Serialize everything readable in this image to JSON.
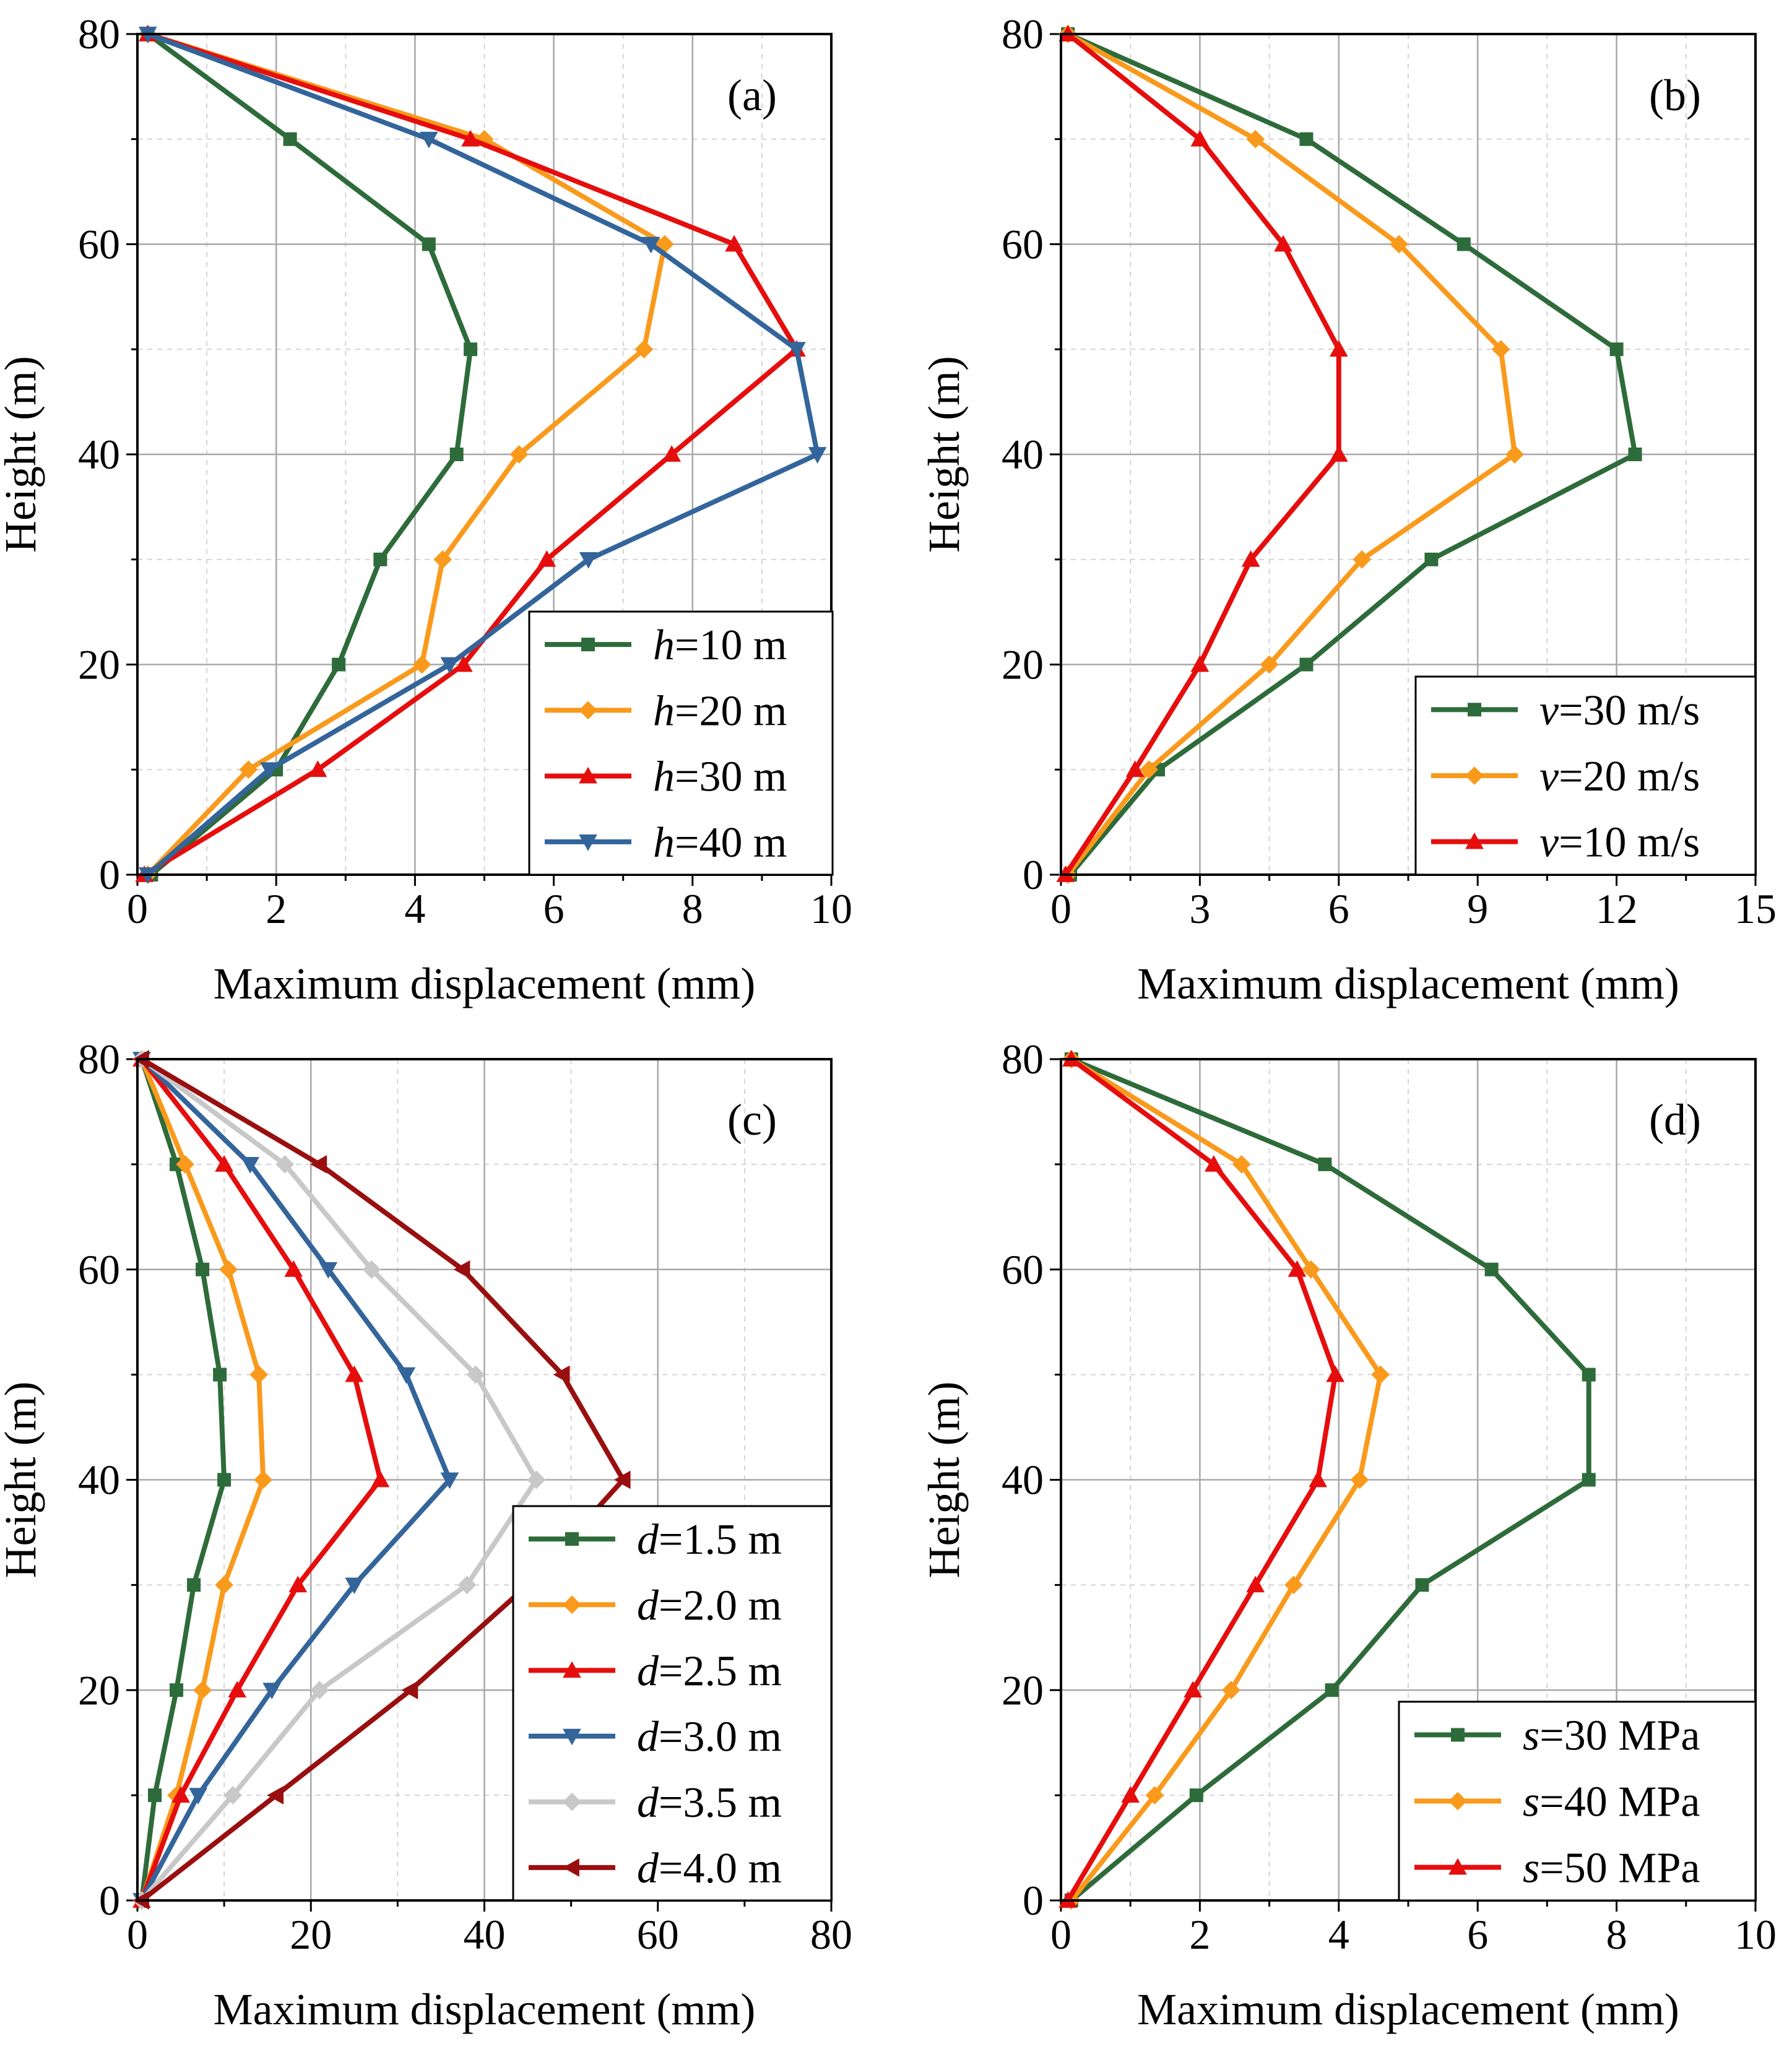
{
  "colors": {
    "green": "#2e6b3a",
    "orange": "#f99a1c",
    "red": "#e60d0d",
    "blue": "#33659b",
    "lightgray": "#c8c8c8",
    "darkred": "#990f0f"
  },
  "chart_data": [
    {
      "id": "a",
      "type": "line",
      "panel_label": "(a)",
      "xlabel": "Maximum displacement (mm)",
      "ylabel": "Height (m)",
      "xlim": [
        0,
        10
      ],
      "ylim": [
        0,
        80
      ],
      "xticks": [
        "0",
        "2",
        "4",
        "6",
        "8",
        "10"
      ],
      "yticks": [
        "0",
        "20",
        "40",
        "60",
        "80"
      ],
      "grid": true,
      "legend_position": "bottom-right",
      "series": [
        {
          "var": "h",
          "rest": "=10 m",
          "color": "green",
          "marker": "square",
          "x": [
            0.2,
            2.0,
            2.9,
            3.5,
            4.6,
            4.8,
            4.2,
            2.2,
            0.15
          ],
          "y": [
            0,
            10,
            20,
            30,
            40,
            50,
            60,
            70,
            80
          ]
        },
        {
          "var": "h",
          "rest": "=20 m",
          "color": "orange",
          "marker": "diamond",
          "x": [
            0.15,
            1.6,
            4.1,
            4.4,
            5.5,
            7.3,
            7.6,
            5.0,
            0.15
          ],
          "y": [
            0,
            10,
            20,
            30,
            40,
            50,
            60,
            70,
            80
          ]
        },
        {
          "var": "h",
          "rest": "=30 m",
          "color": "red",
          "marker": "triangle-up",
          "x": [
            0.1,
            2.6,
            4.7,
            5.9,
            7.7,
            9.5,
            8.6,
            4.8,
            0.15
          ],
          "y": [
            0,
            10,
            20,
            30,
            40,
            50,
            60,
            70,
            80
          ]
        },
        {
          "var": "h",
          "rest": "=40 m",
          "color": "blue",
          "marker": "triangle-down",
          "x": [
            0.15,
            1.9,
            4.5,
            6.5,
            9.8,
            9.5,
            7.4,
            4.2,
            0.15
          ],
          "y": [
            0,
            10,
            20,
            30,
            40,
            50,
            60,
            70,
            80
          ]
        }
      ]
    },
    {
      "id": "b",
      "type": "line",
      "panel_label": "(b)",
      "xlabel": "Maximum displacement (mm)",
      "ylabel": "Height (m)",
      "xlim": [
        0,
        15
      ],
      "ylim": [
        0,
        80
      ],
      "xticks": [
        "0",
        "3",
        "6",
        "9",
        "12",
        "15"
      ],
      "yticks": [
        "0",
        "20",
        "40",
        "60",
        "80"
      ],
      "grid": true,
      "legend_position": "bottom-right",
      "series": [
        {
          "var": "v",
          "rest": "=30 m/s",
          "color": "green",
          "marker": "square",
          "x": [
            0.2,
            2.1,
            5.3,
            8.0,
            12.4,
            12.0,
            8.7,
            5.3,
            0.15
          ],
          "y": [
            0,
            10,
            20,
            30,
            40,
            50,
            60,
            70,
            80
          ]
        },
        {
          "var": "v",
          "rest": "=20 m/s",
          "color": "orange",
          "marker": "diamond",
          "x": [
            0.15,
            1.9,
            4.5,
            6.5,
            9.8,
            9.5,
            7.3,
            4.2,
            0.15
          ],
          "y": [
            0,
            10,
            20,
            30,
            40,
            50,
            60,
            70,
            80
          ]
        },
        {
          "var": "v",
          "rest": "=10 m/s",
          "color": "red",
          "marker": "triangle-up",
          "x": [
            0.1,
            1.6,
            3.0,
            4.1,
            6.0,
            6.0,
            4.8,
            3.0,
            0.15
          ],
          "y": [
            0,
            10,
            20,
            30,
            40,
            50,
            60,
            70,
            80
          ]
        }
      ]
    },
    {
      "id": "c",
      "type": "line",
      "panel_label": "(c)",
      "xlabel": "Maximum displacement (mm)",
      "ylabel": "Height (m)",
      "xlim": [
        0,
        80
      ],
      "ylim": [
        0,
        80
      ],
      "xticks": [
        "0",
        "20",
        "40",
        "60",
        "80"
      ],
      "yticks": [
        "0",
        "20",
        "40",
        "60",
        "80"
      ],
      "grid": true,
      "legend_position": "bottom-right",
      "series": [
        {
          "var": "d",
          "rest": "=1.5 m",
          "color": "green",
          "marker": "square",
          "x": [
            0.5,
            2.0,
            4.5,
            6.5,
            10.0,
            9.5,
            7.5,
            4.5,
            0.5
          ],
          "y": [
            0,
            10,
            20,
            30,
            40,
            50,
            60,
            70,
            80
          ]
        },
        {
          "var": "d",
          "rest": "=2.0 m",
          "color": "orange",
          "marker": "diamond",
          "x": [
            0.5,
            4.5,
            7.5,
            10.0,
            14.5,
            14.0,
            10.5,
            5.5,
            0.5
          ],
          "y": [
            0,
            10,
            20,
            30,
            40,
            50,
            60,
            70,
            80
          ]
        },
        {
          "var": "d",
          "rest": "=2.5 m",
          "color": "red",
          "marker": "triangle-up",
          "x": [
            0.5,
            5.0,
            11.5,
            18.5,
            28.0,
            25.0,
            18.0,
            10.0,
            0.5
          ],
          "y": [
            0,
            10,
            20,
            30,
            40,
            50,
            60,
            70,
            80
          ]
        },
        {
          "var": "d",
          "rest": "=3.0 m",
          "color": "blue",
          "marker": "triangle-down",
          "x": [
            0.5,
            7.0,
            15.5,
            25.0,
            36.0,
            31.0,
            22.0,
            13.0,
            0.5
          ],
          "y": [
            0,
            10,
            20,
            30,
            40,
            50,
            60,
            70,
            80
          ]
        },
        {
          "var": "d",
          "rest": "=3.5 m",
          "color": "lightgray",
          "marker": "diamond",
          "x": [
            0.5,
            11.0,
            21.0,
            38.0,
            46.0,
            39.0,
            27.0,
            17.0,
            0.5
          ],
          "y": [
            0,
            10,
            20,
            30,
            40,
            50,
            60,
            70,
            80
          ]
        },
        {
          "var": "d",
          "rest": "=4.0 m",
          "color": "darkred",
          "marker": "triangle-left",
          "x": [
            0.5,
            16.0,
            31.5,
            45.0,
            56.0,
            49.0,
            37.5,
            21.0,
            0.5
          ],
          "y": [
            0,
            10,
            20,
            30,
            40,
            50,
            60,
            70,
            80
          ]
        }
      ]
    },
    {
      "id": "d",
      "type": "line",
      "panel_label": "(d)",
      "xlabel": "Maximum displacement (mm)",
      "ylabel": "Height (m)",
      "xlim": [
        0,
        10
      ],
      "ylim": [
        0,
        80
      ],
      "xticks": [
        "0",
        "2",
        "4",
        "6",
        "8",
        "10"
      ],
      "yticks": [
        "0",
        "20",
        "40",
        "60",
        "80"
      ],
      "grid": true,
      "legend_position": "bottom-right",
      "series": [
        {
          "var": "s",
          "rest": "=30 MPa",
          "color": "green",
          "marker": "square",
          "x": [
            0.15,
            1.95,
            3.9,
            5.2,
            7.6,
            7.6,
            6.2,
            3.8,
            0.15
          ],
          "y": [
            0,
            10,
            20,
            30,
            40,
            50,
            60,
            70,
            80
          ]
        },
        {
          "var": "s",
          "rest": "=40 MPa",
          "color": "orange",
          "marker": "diamond",
          "x": [
            0.15,
            1.35,
            2.45,
            3.35,
            4.3,
            4.6,
            3.6,
            2.6,
            0.15
          ],
          "y": [
            0,
            10,
            20,
            30,
            40,
            50,
            60,
            70,
            80
          ]
        },
        {
          "var": "s",
          "rest": "=50 MPa",
          "color": "red",
          "marker": "triangle-up",
          "x": [
            0.1,
            1.0,
            1.9,
            2.8,
            3.7,
            3.95,
            3.4,
            2.2,
            0.15
          ],
          "y": [
            0,
            10,
            20,
            30,
            40,
            50,
            60,
            70,
            80
          ]
        }
      ]
    }
  ]
}
